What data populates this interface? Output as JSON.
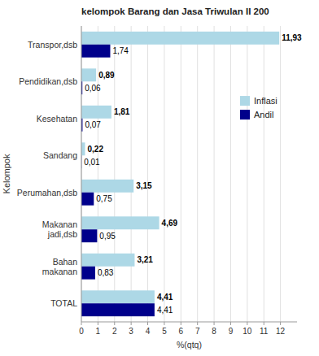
{
  "chart_data": {
    "type": "bar",
    "orientation": "horizontal",
    "title": "kelompok Barang dan Jasa Triwulan II 200",
    "x_label": "%(qtq)",
    "y_label": "Kelompok",
    "categories": [
      "TOTAL",
      "Bahan\nmakanan",
      "Makanan\njadi,dsb",
      "Perumahan,dsb",
      "Sandang",
      "Kesehatan",
      "Pendidikan,dsb",
      "Transpor,dsb"
    ],
    "series": [
      {
        "name": "Inflasi",
        "color": "#add8e6",
        "values": [
          4.41,
          3.21,
          4.69,
          3.15,
          0.22,
          1.81,
          0.89,
          11.93
        ],
        "value_labels": [
          "4,41",
          "3,21",
          "4,69",
          "3,15",
          "0,22",
          "1,81",
          "0,89",
          "11,93"
        ]
      },
      {
        "name": "Andil",
        "color": "#00008b",
        "values": [
          4.41,
          0.83,
          0.95,
          0.75,
          0.01,
          0.07,
          0.06,
          1.74
        ],
        "value_labels": [
          "4,41",
          "0,83",
          "0,95",
          "0,75",
          "0,01",
          "0,07",
          "0,06",
          "1,74"
        ]
      }
    ],
    "xlim": [
      0,
      13
    ],
    "xticks": [
      0,
      1,
      2,
      3,
      4,
      5,
      6,
      7,
      8,
      9,
      10,
      11,
      12
    ],
    "grid": true,
    "legend": "upper right",
    "data_labels": true
  }
}
